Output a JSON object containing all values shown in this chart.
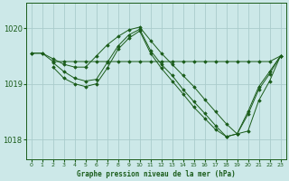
{
  "background_color": "#cce8e8",
  "grid_color": "#aacccc",
  "line_color": "#1a5c1a",
  "marker_color": "#1a5c1a",
  "title": "Graphe pression niveau de la mer (hPa)",
  "ylim": [
    1017.65,
    1020.45
  ],
  "xlim": [
    -0.5,
    23.5
  ],
  "yticks": [
    1018,
    1019,
    1020
  ],
  "xticks": [
    0,
    1,
    2,
    3,
    4,
    5,
    6,
    7,
    8,
    9,
    10,
    11,
    12,
    13,
    14,
    15,
    16,
    17,
    18,
    19,
    20,
    21,
    22,
    23
  ],
  "series": [
    {
      "x": [
        0,
        1,
        2,
        3,
        4,
        5,
        6,
        7,
        8,
        9,
        10,
        11,
        12,
        13,
        14,
        15,
        16,
        17,
        18,
        19,
        20,
        21,
        22,
        23
      ],
      "y": [
        1019.55,
        1019.55,
        1019.4,
        1019.4,
        1019.4,
        1019.4,
        1019.4,
        1019.4,
        1019.4,
        1019.4,
        1019.4,
        1019.4,
        1019.4,
        1019.4,
        1019.4,
        1019.4,
        1019.4,
        1019.4,
        1019.4,
        1019.4,
        1019.4,
        1019.4,
        1019.4,
        1019.5
      ]
    },
    {
      "x": [
        0,
        1,
        2,
        3,
        4,
        5,
        6,
        7,
        8,
        9,
        10,
        11,
        12,
        13,
        14,
        15,
        16,
        17,
        18,
        19,
        20,
        21,
        22,
        23
      ],
      "y": [
        1019.55,
        1019.55,
        1019.45,
        1019.35,
        1019.3,
        1019.3,
        1019.5,
        1019.7,
        1019.85,
        1019.97,
        1020.02,
        1019.78,
        1019.55,
        1019.35,
        1019.15,
        1018.95,
        1018.72,
        1018.5,
        1018.28,
        1018.1,
        1018.15,
        1018.7,
        1019.05,
        1019.5
      ]
    },
    {
      "x": [
        2,
        3,
        4,
        5,
        6,
        7,
        8,
        9,
        10,
        11,
        12,
        13,
        14,
        15,
        16,
        17,
        18,
        19,
        20,
        21,
        22,
        23
      ],
      "y": [
        1019.38,
        1019.22,
        1019.1,
        1019.05,
        1019.08,
        1019.38,
        1019.68,
        1019.88,
        1019.98,
        1019.6,
        1019.35,
        1019.15,
        1018.9,
        1018.68,
        1018.47,
        1018.25,
        1018.05,
        1018.1,
        1018.5,
        1018.95,
        1019.22,
        1019.5
      ]
    },
    {
      "x": [
        2,
        3,
        4,
        5,
        6,
        7,
        8,
        9,
        10,
        11,
        12,
        13,
        14,
        15,
        16,
        17,
        18,
        19,
        20,
        21,
        22,
        23
      ],
      "y": [
        1019.3,
        1019.1,
        1019.0,
        1018.95,
        1019.0,
        1019.28,
        1019.62,
        1019.82,
        1019.95,
        1019.55,
        1019.28,
        1019.05,
        1018.82,
        1018.58,
        1018.38,
        1018.18,
        1018.05,
        1018.1,
        1018.45,
        1018.9,
        1019.18,
        1019.5
      ]
    }
  ]
}
